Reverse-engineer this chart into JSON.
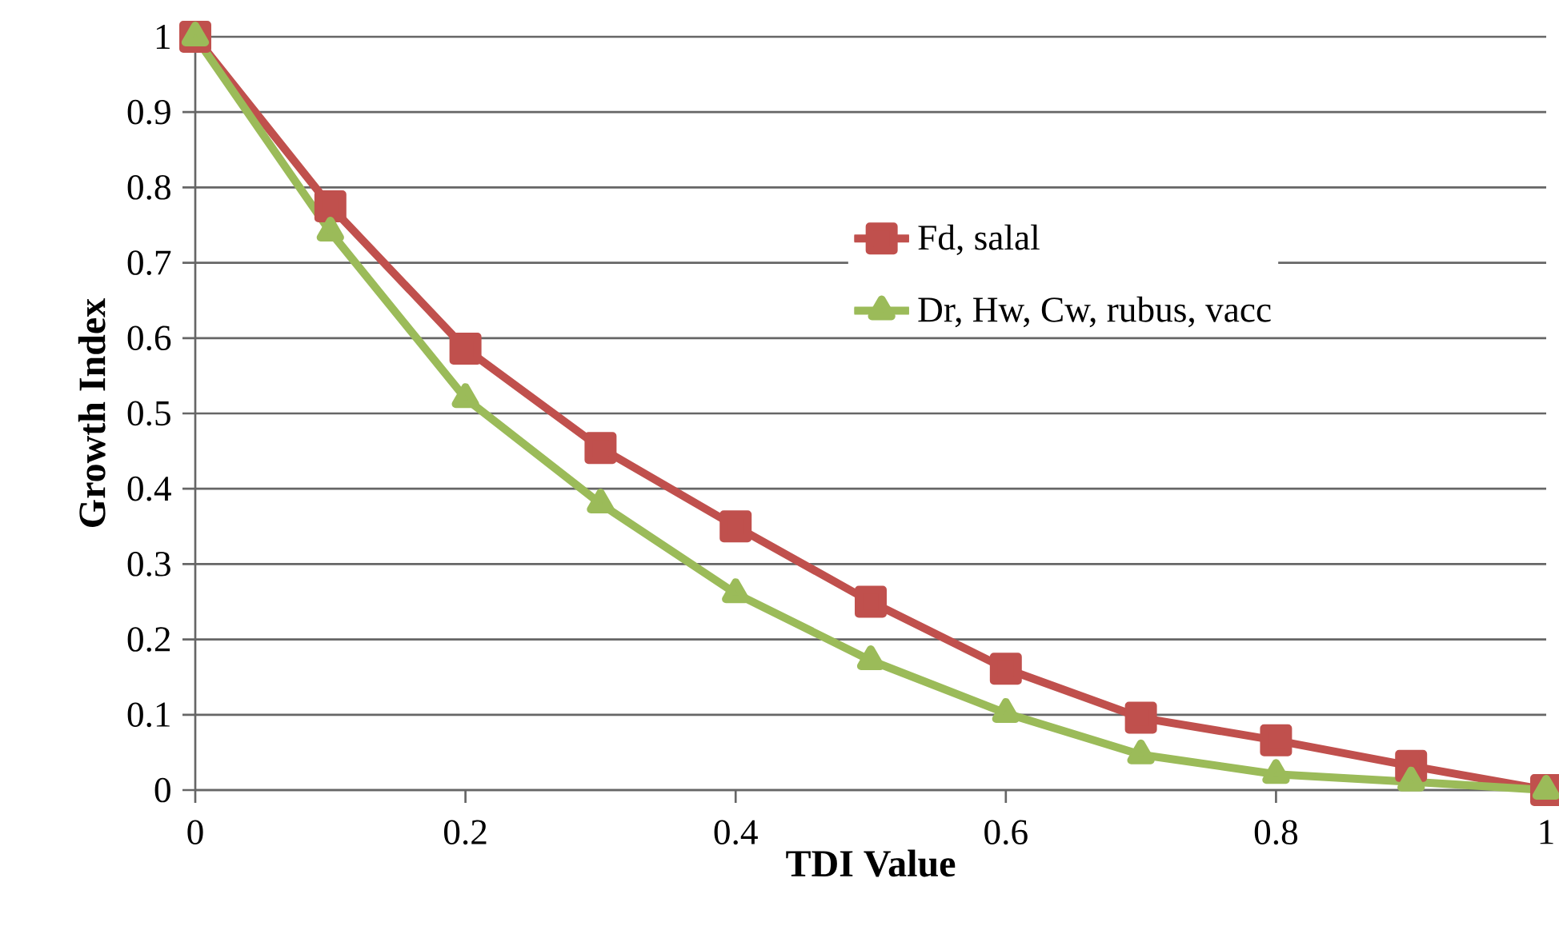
{
  "chart_data": {
    "type": "line",
    "xlabel": "TDI Value",
    "ylabel": "Growth Index",
    "x": [
      0,
      0.1,
      0.2,
      0.3,
      0.4,
      0.5,
      0.6,
      0.7,
      0.8,
      0.9,
      1
    ],
    "series": [
      {
        "name": "Fd, salal",
        "color": "#c0504d",
        "marker": "square",
        "values": [
          1,
          0.775,
          0.586,
          0.454,
          0.35,
          0.25,
          0.161,
          0.096,
          0.066,
          0.032,
          0
        ]
      },
      {
        "name": "Dr, Hw, Cw, rubus, vacc",
        "color": "#9bbb59",
        "marker": "triangle",
        "values": [
          1,
          0.741,
          0.52,
          0.38,
          0.261,
          0.172,
          0.102,
          0.047,
          0.021,
          0.011,
          0
        ]
      }
    ],
    "xlim": [
      0,
      1
    ],
    "ylim": [
      0,
      1
    ],
    "xticks": [
      0,
      0.2,
      0.4,
      0.6,
      0.8,
      1
    ],
    "yticks": [
      0,
      0.1,
      0.2,
      0.3,
      0.4,
      0.5,
      0.6,
      0.7,
      0.8,
      0.9,
      1
    ],
    "grid": "y",
    "legend": "right",
    "line_style": "solid"
  }
}
